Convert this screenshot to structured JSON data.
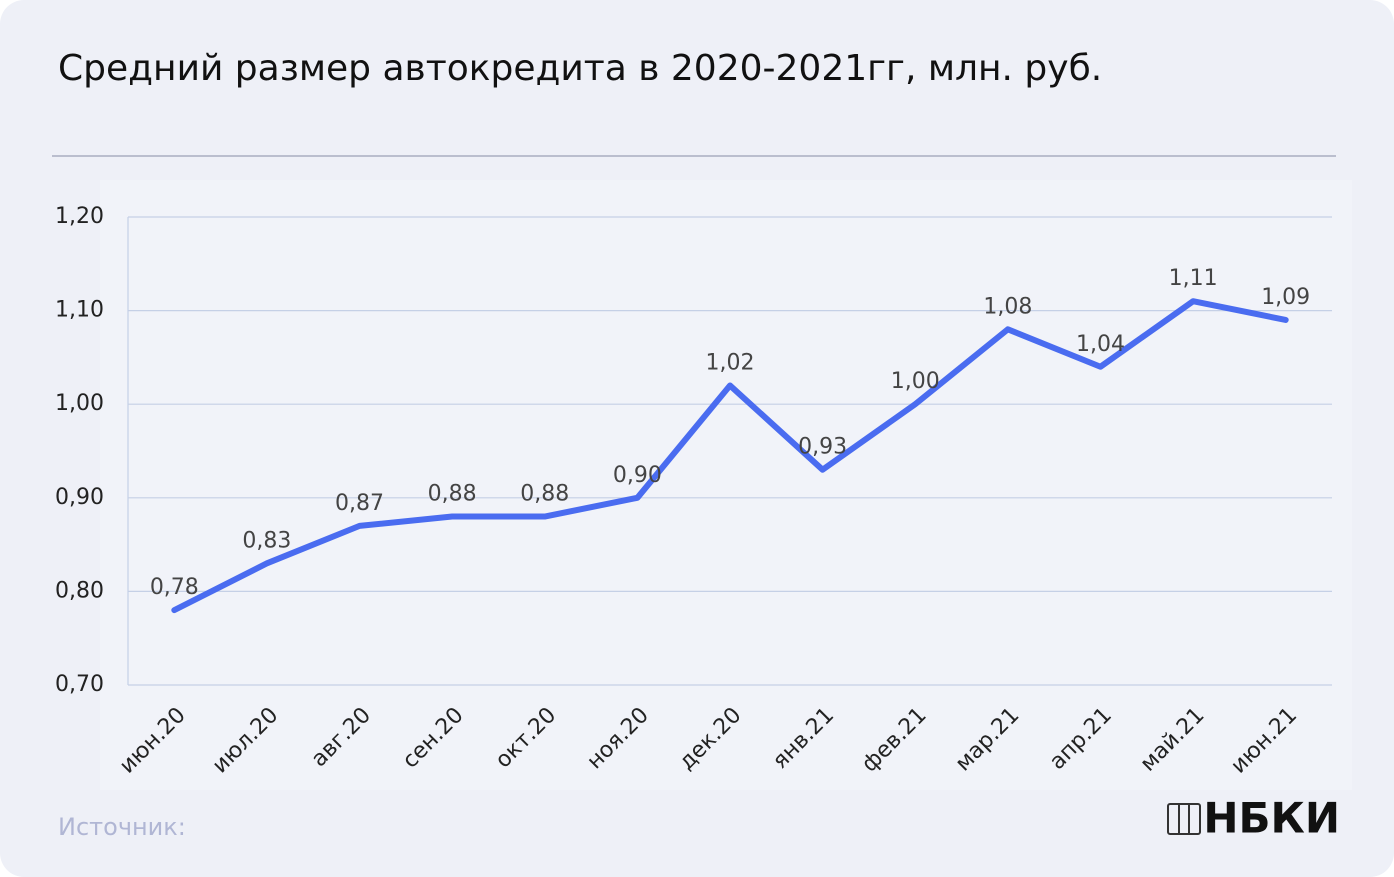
{
  "chart_data": {
    "type": "line",
    "title": "Средний размер автокредита в 2020-2021гг,  млн. руб.",
    "categories": [
      "июн.20",
      "июл.20",
      "авг.20",
      "сен.20",
      "окт.20",
      "ноя.20",
      "дек.20",
      "янв.21",
      "фев.21",
      "мар.21",
      "апр.21",
      "май.21",
      "июн.21"
    ],
    "series": [
      {
        "color": "#4a6cf0",
        "values": [
          0.78,
          0.83,
          0.87,
          0.88,
          0.88,
          0.9,
          1.02,
          0.93,
          1.0,
          1.08,
          1.04,
          1.11,
          1.09
        ],
        "value_labels": [
          "0,78",
          "0,83",
          "0,87",
          "0,88",
          "0,88",
          "0,90",
          "1,02",
          "0,93",
          "1,00",
          "1,08",
          "1,04",
          "1,11",
          "1,09"
        ]
      }
    ],
    "ylim": [
      0.7,
      1.2
    ],
    "yticks": [
      {
        "value": 0.7,
        "label": "0,70"
      },
      {
        "value": 0.8,
        "label": "0,80"
      },
      {
        "value": 0.9,
        "label": "0,90"
      },
      {
        "value": 1.0,
        "label": "1,00"
      },
      {
        "value": 1.1,
        "label": "1,10"
      },
      {
        "value": 1.2,
        "label": "1,20"
      }
    ],
    "grid": true
  },
  "footer": {
    "source": "Источник:",
    "logo": "НБКИ"
  }
}
